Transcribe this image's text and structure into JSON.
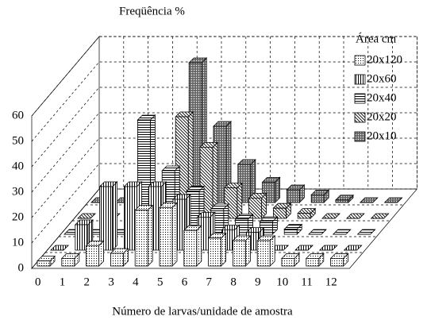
{
  "chart_data": {
    "type": "bar3d",
    "title": "Freqüência %",
    "x_label": "Número de larvas/unidade de amostra",
    "legend_title": "Área cm",
    "categories": [
      "0",
      "1",
      "2",
      "3",
      "4",
      "5",
      "6",
      "7",
      "8",
      "9",
      "10",
      "11",
      "12"
    ],
    "ylim": [
      0,
      60
    ],
    "yticks": [
      0,
      10,
      20,
      30,
      40,
      50,
      60
    ],
    "grid": true,
    "series": [
      {
        "name": "20x120",
        "color": "#ffffff",
        "pattern": "dots",
        "values": [
          2,
          3,
          8,
          5,
          22,
          23,
          14,
          11,
          10,
          10,
          3,
          3,
          3
        ]
      },
      {
        "name": "20x60",
        "color": "#ffffff",
        "pattern": "vlines",
        "values": [
          0,
          10,
          25,
          25,
          25,
          20,
          13,
          8,
          7,
          0,
          0,
          0,
          0
        ]
      },
      {
        "name": "20x40",
        "color": "#ffffff",
        "pattern": "hlines",
        "values": [
          0,
          0,
          0,
          45,
          25,
          17,
          10,
          6,
          5,
          2,
          0,
          0,
          0
        ]
      },
      {
        "name": "20x20",
        "color": "#ffffff",
        "pattern": "diag",
        "values": [
          0,
          0,
          0,
          0,
          40,
          28,
          12,
          8,
          4,
          2,
          0,
          0,
          0
        ]
      },
      {
        "name": "20x10",
        "color": "#ffffff",
        "pattern": "cross",
        "values": [
          0,
          0,
          0,
          0,
          55,
          30,
          15,
          8,
          5,
          3,
          1,
          0,
          0
        ]
      }
    ]
  }
}
